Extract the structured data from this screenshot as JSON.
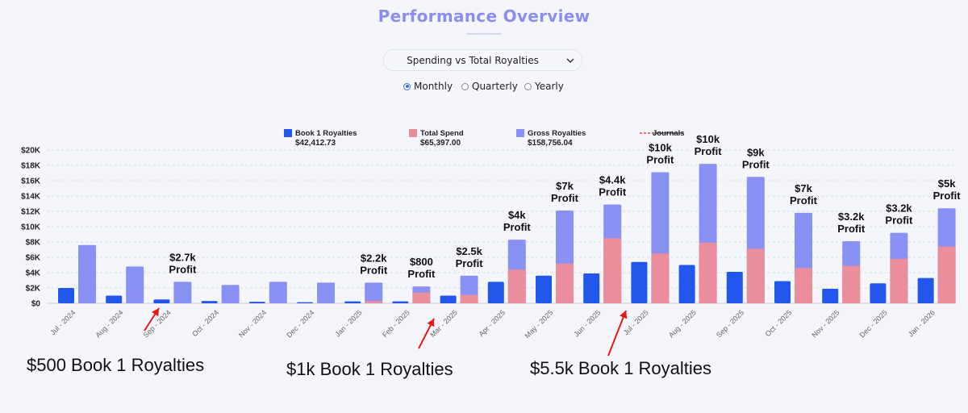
{
  "page_title": "Performance Overview",
  "dropdown": {
    "selected": "Spending vs Total Royalties"
  },
  "period_options": [
    {
      "label": "Monthly",
      "checked": true
    },
    {
      "label": "Quarterly",
      "checked": false
    },
    {
      "label": "Yearly",
      "checked": false
    }
  ],
  "colors": {
    "book1": "#2356ec",
    "spend": "#ea8e9d",
    "gross": "#8a91f4",
    "journals": "#e54b4b",
    "title": "#8b8ef0"
  },
  "chart_data": {
    "type": "bar",
    "categories": [
      "Jul - 2024",
      "Aug - 2024",
      "Sep - 2024",
      "Oct - 2024",
      "Nov - 2024",
      "Dec - 2024",
      "Jan - 2025",
      "Feb - 2025",
      "Mar - 2025",
      "Apr - 2025",
      "May - 2025",
      "Jun - 2025",
      "Jul - 2025",
      "Aug - 2025",
      "Sep - 2025",
      "Oct - 2025",
      "Nov - 2025",
      "Dec - 2025",
      "Jan - 2026"
    ],
    "ylim": [
      0,
      20000
    ],
    "yticks": [
      0,
      2000,
      4000,
      6000,
      8000,
      10000,
      12000,
      14000,
      16000,
      18000,
      20000
    ],
    "ytick_labels": [
      "$0",
      "$2K",
      "$4K",
      "$6K",
      "$8K",
      "$10K",
      "$12K",
      "$14K",
      "$16K",
      "$18K",
      "$20K"
    ],
    "grid": true,
    "legend": [
      {
        "name": "Book 1 Royalties",
        "total": "$42,412.73",
        "swatch": "book1"
      },
      {
        "name": "Total Spend",
        "total": "$65,397.00",
        "swatch": "spend"
      },
      {
        "name": "Gross Royalties",
        "total": "$158,756.04",
        "swatch": "gross"
      },
      {
        "name": "Journals",
        "total": "",
        "swatch": "journals"
      }
    ],
    "series": [
      {
        "name": "Book 1 Royalties",
        "values": [
          2000,
          1000,
          500,
          300,
          200,
          150,
          250,
          250,
          1000,
          2800,
          3600,
          3900,
          5400,
          5000,
          4100,
          2900,
          1900,
          2600,
          3300
        ]
      },
      {
        "name": "Total Spend",
        "values": [
          0,
          0,
          0,
          0,
          0,
          0,
          300,
          1400,
          1100,
          4400,
          5200,
          8500,
          6500,
          7900,
          7100,
          4600,
          4900,
          5800,
          7400
        ]
      },
      {
        "name": "Gross Royalties",
        "values": [
          7600,
          4800,
          2800,
          2400,
          2800,
          2700,
          2700,
          2200,
          3600,
          8300,
          12100,
          12900,
          17100,
          18200,
          16500,
          11800,
          8100,
          9200,
          12400
        ]
      }
    ],
    "profit_labels": [
      "",
      "",
      "$2.7k\nProfit",
      "",
      "",
      "",
      "$2.2k\nProfit",
      "$800\nProfit",
      "$2.5k\nProfit",
      "$4k\nProfit",
      "$7k\nProfit",
      "$4.4k\nProfit",
      "$10k\nProfit",
      "$10k\nProfit",
      "$9k\nProfit",
      "$7k\nProfit",
      "$3.2k\nProfit",
      "$3.2k\nProfit",
      "$5k\nProfit"
    ]
  },
  "annotations": [
    {
      "text": "$500 Book 1 Royalties",
      "points_to": "Sep - 2024"
    },
    {
      "text": "$1k Book 1 Royalties",
      "points_to": "Mar - 2025"
    },
    {
      "text": "$5.5k Book 1 Royalties",
      "points_to": "Jul - 2025"
    }
  ]
}
